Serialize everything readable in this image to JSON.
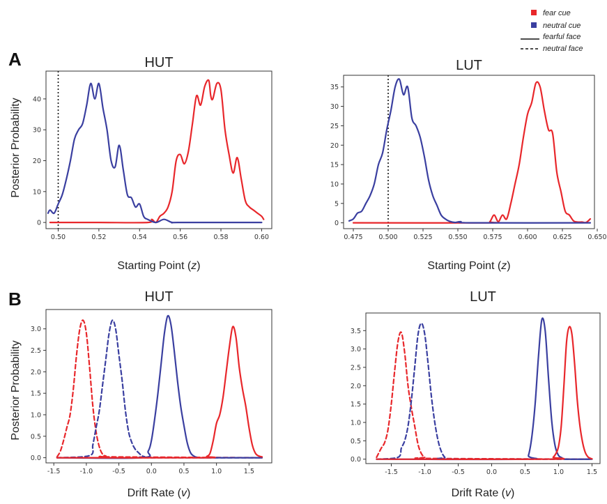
{
  "legend": {
    "items": [
      {
        "label": "fear cue",
        "kind": "swatch",
        "color": "#e8272b"
      },
      {
        "label": "neutral cue",
        "kind": "swatch",
        "color": "#3a3fa0"
      },
      {
        "label": "fearful face",
        "kind": "line",
        "dash": false
      },
      {
        "label": "neutral face",
        "kind": "line",
        "dash": true
      }
    ]
  },
  "colors": {
    "fear": "#e8272b",
    "neutral": "#3a3fa0"
  },
  "panels": [
    {
      "letter": "A",
      "ylabel": "Posterior Probability"
    },
    {
      "letter": "B",
      "ylabel": "Posterior Probability"
    }
  ],
  "chart_data": [
    {
      "type": "line",
      "panel": "A",
      "title": "HUT",
      "xlabel_main": "Starting Point (",
      "xlabel_var": "z",
      "xlabel_end": ")",
      "xlim": [
        0.494,
        0.605
      ],
      "ylim": [
        -2,
        49
      ],
      "xticks": [
        0.5,
        0.52,
        0.54,
        0.56,
        0.58,
        0.6
      ],
      "xtick_labels": [
        "0.50",
        "0.52",
        "0.54",
        "0.56",
        "0.58",
        "0.60"
      ],
      "yticks": [
        0,
        10,
        20,
        30,
        40
      ],
      "ytick_labels": [
        "0",
        "10",
        "20",
        "30",
        "40"
      ],
      "vline": 0.5,
      "series": [
        {
          "cue": "fear",
          "face": "fearful",
          "color": "#e8272b",
          "dashed": false,
          "x": [
            0.496,
            0.52,
            0.544,
            0.546,
            0.548,
            0.55,
            0.552,
            0.554,
            0.556,
            0.558,
            0.56,
            0.562,
            0.564,
            0.566,
            0.568,
            0.57,
            0.572,
            0.574,
            0.575,
            0.576,
            0.578,
            0.58,
            0.582,
            0.584,
            0.586,
            0.588,
            0.59,
            0.592,
            0.594,
            0.596,
            0.598,
            0.6,
            0.601
          ],
          "y": [
            0,
            0,
            0,
            1,
            0,
            2,
            3,
            5,
            10,
            20,
            22,
            19,
            23,
            32,
            41,
            38,
            44,
            46,
            41,
            40,
            45,
            43,
            30,
            22,
            16,
            21,
            14,
            7,
            5,
            4,
            3,
            2,
            1
          ]
        },
        {
          "cue": "neutral",
          "face": "fearful",
          "color": "#3a3fa0",
          "dashed": false,
          "x": [
            0.495,
            0.496,
            0.498,
            0.5,
            0.502,
            0.504,
            0.506,
            0.508,
            0.51,
            0.512,
            0.514,
            0.516,
            0.518,
            0.52,
            0.522,
            0.524,
            0.526,
            0.528,
            0.53,
            0.532,
            0.534,
            0.536,
            0.538,
            0.54,
            0.542,
            0.544,
            0.548,
            0.552,
            0.556,
            0.56,
            0.6
          ],
          "y": [
            3,
            4,
            3,
            6,
            9,
            14,
            20,
            27,
            30,
            32,
            38,
            45,
            40,
            45,
            37,
            30,
            20,
            18,
            25,
            17,
            9,
            8,
            5,
            6,
            2,
            1,
            0,
            1,
            0,
            0,
            0
          ]
        }
      ]
    },
    {
      "type": "line",
      "panel": "A",
      "title": "LUT",
      "xlabel_main": "Starting Point (",
      "xlabel_var": "z",
      "xlabel_end": ")",
      "xlim": [
        0.468,
        0.648
      ],
      "ylim": [
        -1.5,
        38
      ],
      "xticks": [
        0.475,
        0.5,
        0.525,
        0.55,
        0.575,
        0.6,
        0.625,
        0.65
      ],
      "xtick_labels": [
        "0.475",
        "0.500",
        "0.525",
        "0.550",
        "0.575",
        "0.600",
        "0.625",
        "0.650"
      ],
      "yticks": [
        0,
        5,
        10,
        15,
        20,
        25,
        30,
        35
      ],
      "ytick_labels": [
        "0",
        "5",
        "10",
        "15",
        "20",
        "25",
        "30",
        "35"
      ],
      "vline": 0.5,
      "series": [
        {
          "cue": "fear",
          "face": "fearful",
          "color": "#e8272b",
          "dashed": false,
          "x": [
            0.475,
            0.57,
            0.573,
            0.576,
            0.579,
            0.582,
            0.585,
            0.588,
            0.591,
            0.594,
            0.597,
            0.6,
            0.603,
            0.606,
            0.609,
            0.612,
            0.615,
            0.618,
            0.621,
            0.624,
            0.627,
            0.63,
            0.633,
            0.636,
            0.639,
            0.642,
            0.645
          ],
          "y": [
            0,
            0,
            0.3,
            2,
            0.3,
            2,
            1,
            5,
            10,
            15,
            22,
            28,
            31,
            36,
            35,
            29,
            24,
            23,
            13,
            8,
            3,
            2,
            0.5,
            0.2,
            0.2,
            0.1,
            1
          ]
        },
        {
          "cue": "neutral",
          "face": "fearful",
          "color": "#3a3fa0",
          "dashed": false,
          "x": [
            0.472,
            0.475,
            0.478,
            0.481,
            0.484,
            0.487,
            0.49,
            0.493,
            0.496,
            0.499,
            0.502,
            0.505,
            0.508,
            0.511,
            0.514,
            0.517,
            0.52,
            0.523,
            0.526,
            0.529,
            0.532,
            0.535,
            0.538,
            0.541,
            0.544,
            0.548,
            0.552,
            0.56,
            0.645
          ],
          "y": [
            0.5,
            1,
            2.5,
            3,
            5,
            7,
            10,
            15,
            18,
            24,
            29,
            35,
            37,
            33,
            35,
            27,
            25,
            22,
            17,
            11,
            7,
            4.5,
            2,
            1,
            0.4,
            0.1,
            0.3,
            0,
            0
          ]
        }
      ]
    },
    {
      "type": "line",
      "panel": "B",
      "title": "HUT",
      "xlabel_main": "Drift Rate (",
      "xlabel_var": "v",
      "xlabel_end": ")",
      "xlim": [
        -1.62,
        1.85
      ],
      "ylim": [
        -0.12,
        3.45
      ],
      "xticks": [
        -1.5,
        -1.0,
        -0.5,
        0.0,
        0.5,
        1.0,
        1.5
      ],
      "xtick_labels": [
        "-1.5",
        "-1.0",
        "-0.5",
        "0.0",
        "0.5",
        "1.0",
        "1.5"
      ],
      "yticks": [
        0,
        0.5,
        1.0,
        1.5,
        2.0,
        2.5,
        3.0
      ],
      "ytick_labels": [
        "0.0",
        "0.5",
        "1.0",
        "1.5",
        "2.0",
        "2.5",
        "3.0"
      ],
      "series": [
        {
          "cue": "fear",
          "face": "neutral",
          "color": "#e8272b",
          "dashed": true,
          "x": [
            -1.45,
            -1.4,
            -1.35,
            -1.3,
            -1.25,
            -1.2,
            -1.15,
            -1.1,
            -1.05,
            -1.0,
            -0.95,
            -0.9,
            -0.85,
            -0.8,
            -0.75,
            -0.7,
            -0.6,
            1.7
          ],
          "y": [
            0.02,
            0.15,
            0.4,
            0.7,
            1.0,
            1.6,
            2.4,
            3.0,
            3.2,
            2.9,
            2.1,
            1.2,
            0.6,
            0.25,
            0.08,
            0.04,
            0.02,
            0.0
          ]
        },
        {
          "cue": "neutral",
          "face": "neutral",
          "color": "#3a3fa0",
          "dashed": true,
          "x": [
            -1.45,
            -0.95,
            -0.9,
            -0.85,
            -0.8,
            -0.75,
            -0.7,
            -0.65,
            -0.6,
            -0.55,
            -0.5,
            -0.45,
            -0.4,
            -0.35,
            -0.3,
            -0.25,
            -0.2,
            -0.15,
            -0.1,
            -0.05,
            1.7
          ],
          "y": [
            0.0,
            0.05,
            0.3,
            0.7,
            1.1,
            1.7,
            2.3,
            2.9,
            3.2,
            3.0,
            2.4,
            1.8,
            1.1,
            0.6,
            0.35,
            0.2,
            0.12,
            0.05,
            0.02,
            0.0,
            0.0
          ]
        },
        {
          "cue": "neutral",
          "face": "fearful",
          "color": "#3a3fa0",
          "dashed": false,
          "x": [
            -1.45,
            -0.15,
            -0.05,
            0.0,
            0.05,
            0.1,
            0.15,
            0.2,
            0.25,
            0.3,
            0.35,
            0.4,
            0.45,
            0.5,
            0.55,
            0.6,
            0.65,
            0.7,
            0.8,
            1.7
          ],
          "y": [
            0.0,
            0.0,
            0.15,
            0.4,
            0.9,
            1.5,
            2.2,
            2.9,
            3.3,
            3.1,
            2.5,
            1.8,
            1.2,
            0.75,
            0.35,
            0.12,
            0.04,
            0.01,
            0.0,
            0.0
          ]
        },
        {
          "cue": "fear",
          "face": "fearful",
          "color": "#e8272b",
          "dashed": false,
          "x": [
            -1.45,
            0.8,
            0.85,
            0.9,
            0.95,
            1.0,
            1.05,
            1.1,
            1.15,
            1.2,
            1.25,
            1.3,
            1.35,
            1.4,
            1.45,
            1.5,
            1.55,
            1.6,
            1.65,
            1.7
          ],
          "y": [
            0.0,
            0.0,
            0.03,
            0.1,
            0.4,
            0.8,
            1.0,
            1.4,
            2.0,
            2.6,
            3.05,
            2.8,
            2.1,
            1.6,
            1.2,
            0.7,
            0.3,
            0.1,
            0.04,
            0.02
          ]
        }
      ]
    },
    {
      "type": "line",
      "panel": "B",
      "title": "LUT",
      "xlabel_main": "Drift Rate (",
      "xlabel_var": "v",
      "xlabel_end": ")",
      "xlim": [
        -1.88,
        1.62
      ],
      "ylim": [
        -0.12,
        3.98
      ],
      "xticks": [
        -1.5,
        -1.0,
        -0.5,
        0.0,
        0.5,
        1.0,
        1.5
      ],
      "xtick_labels": [
        "-1.5",
        "-1.0",
        "-0.5",
        "0.0",
        "0.5",
        "1.0",
        "1.5"
      ],
      "yticks": [
        0,
        0.5,
        1.0,
        1.5,
        2.0,
        2.5,
        3.0,
        3.5
      ],
      "ytick_labels": [
        "0.0",
        "0.5",
        "1.0",
        "1.5",
        "2.0",
        "2.5",
        "3.0",
        "3.5"
      ],
      "series": [
        {
          "cue": "fear",
          "face": "neutral",
          "color": "#e8272b",
          "dashed": true,
          "x": [
            -1.72,
            -1.65,
            -1.6,
            -1.55,
            -1.5,
            -1.45,
            -1.4,
            -1.35,
            -1.3,
            -1.25,
            -1.2,
            -1.15,
            -1.1,
            -1.05,
            -1.0,
            -0.95,
            1.5
          ],
          "y": [
            0.05,
            0.3,
            0.45,
            0.8,
            1.5,
            2.4,
            3.2,
            3.45,
            2.9,
            2.0,
            1.4,
            0.9,
            0.4,
            0.15,
            0.05,
            0.02,
            0.0
          ]
        },
        {
          "cue": "neutral",
          "face": "neutral",
          "color": "#3a3fa0",
          "dashed": true,
          "x": [
            -1.72,
            -1.4,
            -1.35,
            -1.3,
            -1.25,
            -1.2,
            -1.15,
            -1.1,
            -1.05,
            -1.0,
            -0.95,
            -0.9,
            -0.85,
            -0.8,
            -0.75,
            -0.7,
            -0.65,
            1.5
          ],
          "y": [
            0.0,
            0.05,
            0.3,
            0.5,
            0.9,
            1.6,
            2.5,
            3.4,
            3.7,
            3.4,
            2.6,
            1.7,
            1.0,
            0.5,
            0.2,
            0.05,
            0.0,
            0.0
          ]
        },
        {
          "cue": "neutral",
          "face": "fearful",
          "color": "#3a3fa0",
          "dashed": false,
          "x": [
            -1.72,
            0.5,
            0.55,
            0.6,
            0.65,
            0.7,
            0.75,
            0.8,
            0.85,
            0.9,
            0.95,
            1.0,
            1.05,
            1.1,
            1.5
          ],
          "y": [
            0.0,
            0.0,
            0.1,
            0.6,
            1.5,
            2.8,
            3.8,
            3.5,
            2.2,
            1.0,
            0.35,
            0.1,
            0.04,
            0.0,
            0.0
          ]
        },
        {
          "cue": "fear",
          "face": "fearful",
          "color": "#e8272b",
          "dashed": false,
          "x": [
            -1.72,
            0.88,
            0.92,
            0.96,
            1.0,
            1.04,
            1.08,
            1.12,
            1.16,
            1.2,
            1.24,
            1.28,
            1.32,
            1.36,
            1.4,
            1.44,
            1.48,
            1.5
          ],
          "y": [
            0.0,
            0.0,
            0.05,
            0.15,
            0.35,
            0.9,
            2.0,
            3.2,
            3.6,
            3.4,
            2.6,
            1.6,
            0.9,
            0.45,
            0.18,
            0.06,
            0.02,
            0.01
          ]
        }
      ]
    }
  ]
}
